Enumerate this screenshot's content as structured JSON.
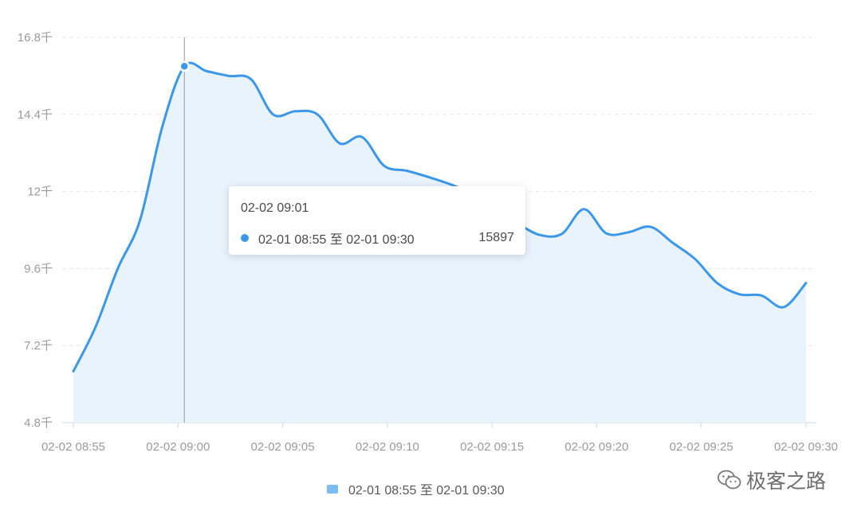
{
  "chart_data": {
    "type": "area",
    "y_ticks": [
      {
        "value": 4.8,
        "label": "4.8千"
      },
      {
        "value": 7.2,
        "label": "7.2千"
      },
      {
        "value": 9.6,
        "label": "9.6千"
      },
      {
        "value": 12,
        "label": "12千"
      },
      {
        "value": 14.4,
        "label": "14.4千"
      },
      {
        "value": 16.8,
        "label": "16.8千"
      }
    ],
    "ylim": [
      4.8,
      16.8
    ],
    "x_tick_labels": [
      "02-02 08:55",
      "02-02 09:00",
      "02-02 09:05",
      "02-02 09:10",
      "02-02 09:15",
      "02-02 09:20",
      "02-02 09:25",
      "02-02 09:30"
    ],
    "series": [
      {
        "name": "02-01 08:55 至 02-01 09:30",
        "color": "#3b97e9",
        "fill": "#e8f3fc",
        "values": [
          6.4,
          7.78,
          9.6,
          11.1,
          14.0,
          15.9,
          15.75,
          15.6,
          15.5,
          14.4,
          14.5,
          14.4,
          13.5,
          13.7,
          12.8,
          12.65,
          12.45,
          12.22,
          11.9,
          11.35,
          11.0,
          10.65,
          10.68,
          11.45,
          10.7,
          10.73,
          10.9,
          10.4,
          9.9,
          9.15,
          8.8,
          8.76,
          8.4,
          9.15
        ]
      }
    ],
    "grid": true,
    "crosshair_at": "02-02 09:01",
    "tooltip": {
      "title": "02-02 09:01",
      "series_label": "02-01 08:55 至 02-01 09:30",
      "value": "15897"
    },
    "legend_position": "bottom-center"
  },
  "watermark": {
    "text": "极客之路",
    "icon": "wechat-icon"
  },
  "colors": {
    "grid": "#e6e6e6",
    "axis_text": "#9b9b9b",
    "crosshair": "#9a9a9a"
  }
}
